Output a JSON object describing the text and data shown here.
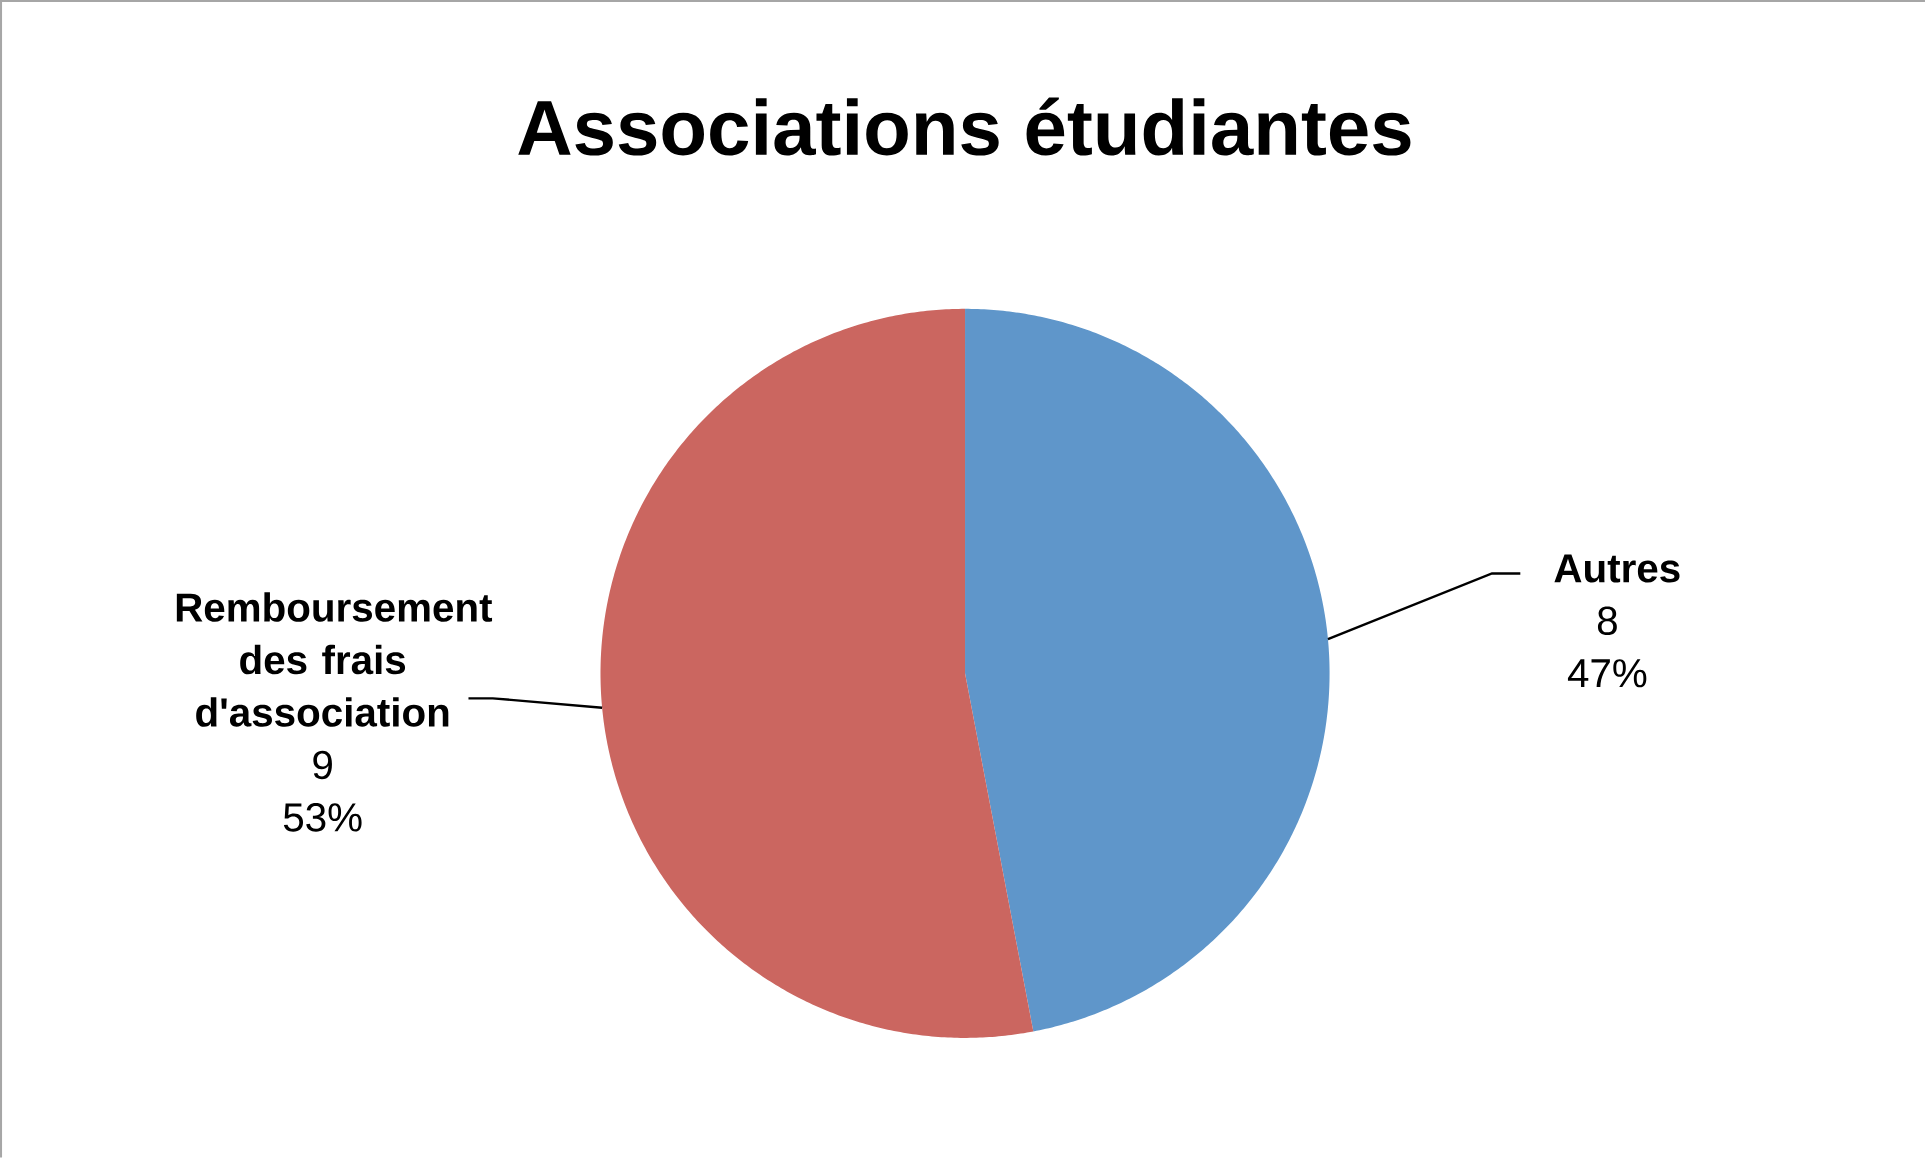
{
  "chart_data": {
    "type": "pie",
    "title": "Associations étudiantes",
    "categories": [
      "Autres",
      "Remboursement des frais d'association"
    ],
    "values": [
      47,
      53
    ],
    "colors": [
      "#5f96ca",
      "#cb6660"
    ],
    "value_labels": [
      "47%",
      "53%"
    ],
    "annotations": [
      "8",
      "9"
    ]
  }
}
